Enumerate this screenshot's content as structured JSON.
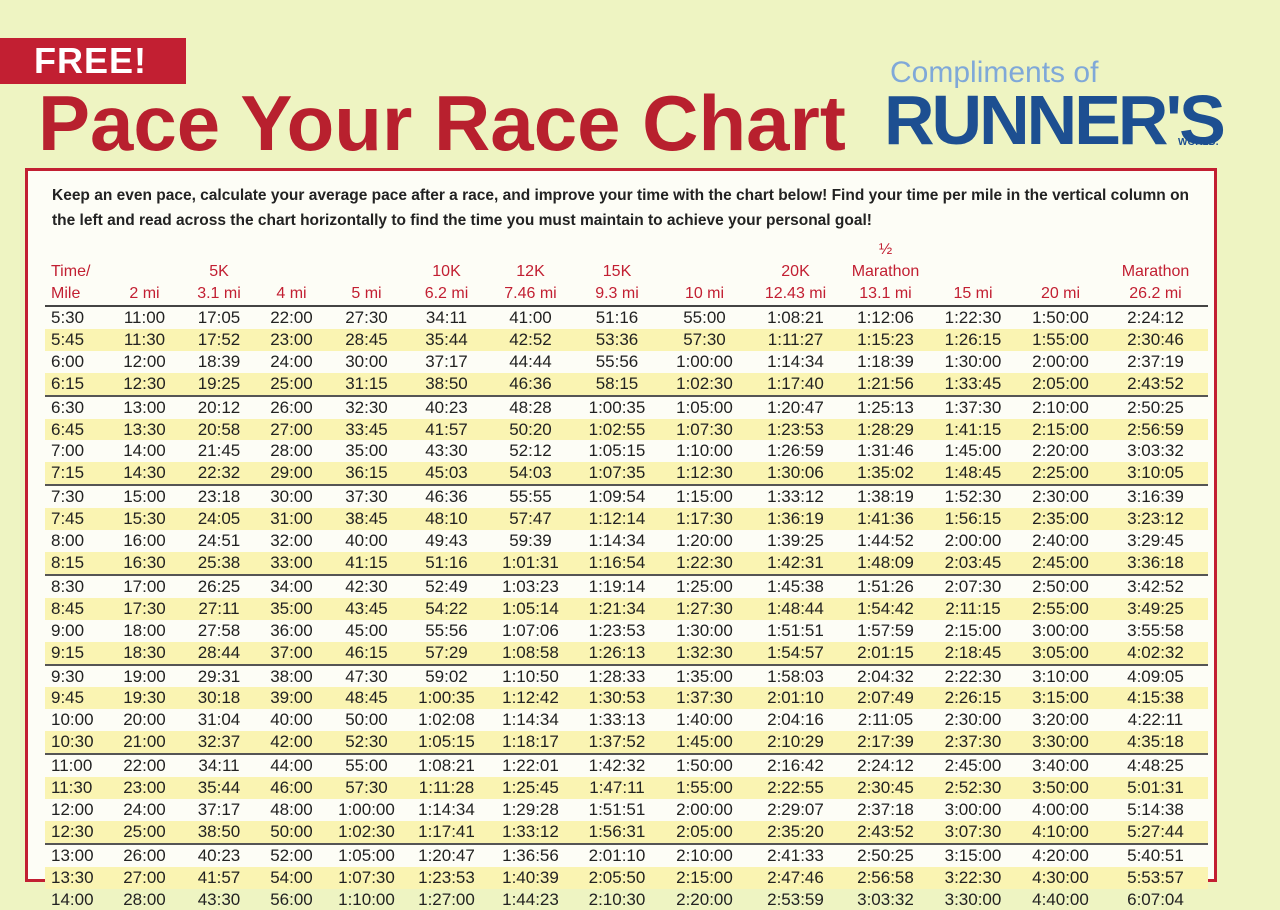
{
  "badge": "FREE!",
  "title": "Pace Your Race Chart",
  "sponsor": {
    "prefix": "Compliments of",
    "name": "RUNNER'S",
    "suffix": "WORLD."
  },
  "intro": "Keep an even pace, calculate your average pace after a race, and improve your time with the chart below! Find your time per mile in the vertical column on the left and read across the chart horizontally to find the time you must maintain to achieve your personal goal!",
  "table": {
    "headers": [
      {
        "top": "Time/",
        "bottom": "Mile"
      },
      {
        "bottom": "2 mi"
      },
      {
        "top": "5K",
        "bottom": "3.1 mi"
      },
      {
        "bottom": "4 mi"
      },
      {
        "bottom": "5 mi"
      },
      {
        "top": "10K",
        "bottom": "6.2 mi"
      },
      {
        "top": "12K",
        "bottom": "7.46 mi"
      },
      {
        "top": "15K",
        "bottom": "9.3 mi"
      },
      {
        "bottom": "10 mi"
      },
      {
        "top": "20K",
        "bottom": "12.43 mi"
      },
      {
        "top": "½ Marathon",
        "bottom": "13.1 mi"
      },
      {
        "bottom": "15 mi"
      },
      {
        "bottom": "20 mi"
      },
      {
        "top": "Marathon",
        "bottom": "26.2 mi"
      }
    ],
    "rows": [
      [
        "5:30",
        "11:00",
        "17:05",
        "22:00",
        "27:30",
        "34:11",
        "41:00",
        "51:16",
        "55:00",
        "1:08:21",
        "1:12:06",
        "1:22:30",
        "1:50:00",
        "2:24:12"
      ],
      [
        "5:45",
        "11:30",
        "17:52",
        "23:00",
        "28:45",
        "35:44",
        "42:52",
        "53:36",
        "57:30",
        "1:11:27",
        "1:15:23",
        "1:26:15",
        "1:55:00",
        "2:30:46"
      ],
      [
        "6:00",
        "12:00",
        "18:39",
        "24:00",
        "30:00",
        "37:17",
        "44:44",
        "55:56",
        "1:00:00",
        "1:14:34",
        "1:18:39",
        "1:30:00",
        "2:00:00",
        "2:37:19"
      ],
      [
        "6:15",
        "12:30",
        "19:25",
        "25:00",
        "31:15",
        "38:50",
        "46:36",
        "58:15",
        "1:02:30",
        "1:17:40",
        "1:21:56",
        "1:33:45",
        "2:05:00",
        "2:43:52"
      ],
      [
        "6:30",
        "13:00",
        "20:12",
        "26:00",
        "32:30",
        "40:23",
        "48:28",
        "1:00:35",
        "1:05:00",
        "1:20:47",
        "1:25:13",
        "1:37:30",
        "2:10:00",
        "2:50:25"
      ],
      [
        "6:45",
        "13:30",
        "20:58",
        "27:00",
        "33:45",
        "41:57",
        "50:20",
        "1:02:55",
        "1:07:30",
        "1:23:53",
        "1:28:29",
        "1:41:15",
        "2:15:00",
        "2:56:59"
      ],
      [
        "7:00",
        "14:00",
        "21:45",
        "28:00",
        "35:00",
        "43:30",
        "52:12",
        "1:05:15",
        "1:10:00",
        "1:26:59",
        "1:31:46",
        "1:45:00",
        "2:20:00",
        "3:03:32"
      ],
      [
        "7:15",
        "14:30",
        "22:32",
        "29:00",
        "36:15",
        "45:03",
        "54:03",
        "1:07:35",
        "1:12:30",
        "1:30:06",
        "1:35:02",
        "1:48:45",
        "2:25:00",
        "3:10:05"
      ],
      [
        "7:30",
        "15:00",
        "23:18",
        "30:00",
        "37:30",
        "46:36",
        "55:55",
        "1:09:54",
        "1:15:00",
        "1:33:12",
        "1:38:19",
        "1:52:30",
        "2:30:00",
        "3:16:39"
      ],
      [
        "7:45",
        "15:30",
        "24:05",
        "31:00",
        "38:45",
        "48:10",
        "57:47",
        "1:12:14",
        "1:17:30",
        "1:36:19",
        "1:41:36",
        "1:56:15",
        "2:35:00",
        "3:23:12"
      ],
      [
        "8:00",
        "16:00",
        "24:51",
        "32:00",
        "40:00",
        "49:43",
        "59:39",
        "1:14:34",
        "1:20:00",
        "1:39:25",
        "1:44:52",
        "2:00:00",
        "2:40:00",
        "3:29:45"
      ],
      [
        "8:15",
        "16:30",
        "25:38",
        "33:00",
        "41:15",
        "51:16",
        "1:01:31",
        "1:16:54",
        "1:22:30",
        "1:42:31",
        "1:48:09",
        "2:03:45",
        "2:45:00",
        "3:36:18"
      ],
      [
        "8:30",
        "17:00",
        "26:25",
        "34:00",
        "42:30",
        "52:49",
        "1:03:23",
        "1:19:14",
        "1:25:00",
        "1:45:38",
        "1:51:26",
        "2:07:30",
        "2:50:00",
        "3:42:52"
      ],
      [
        "8:45",
        "17:30",
        "27:11",
        "35:00",
        "43:45",
        "54:22",
        "1:05:14",
        "1:21:34",
        "1:27:30",
        "1:48:44",
        "1:54:42",
        "2:11:15",
        "2:55:00",
        "3:49:25"
      ],
      [
        "9:00",
        "18:00",
        "27:58",
        "36:00",
        "45:00",
        "55:56",
        "1:07:06",
        "1:23:53",
        "1:30:00",
        "1:51:51",
        "1:57:59",
        "2:15:00",
        "3:00:00",
        "3:55:58"
      ],
      [
        "9:15",
        "18:30",
        "28:44",
        "37:00",
        "46:15",
        "57:29",
        "1:08:58",
        "1:26:13",
        "1:32:30",
        "1:54:57",
        "2:01:15",
        "2:18:45",
        "3:05:00",
        "4:02:32"
      ],
      [
        "9:30",
        "19:00",
        "29:31",
        "38:00",
        "47:30",
        "59:02",
        "1:10:50",
        "1:28:33",
        "1:35:00",
        "1:58:03",
        "2:04:32",
        "2:22:30",
        "3:10:00",
        "4:09:05"
      ],
      [
        "9:45",
        "19:30",
        "30:18",
        "39:00",
        "48:45",
        "1:00:35",
        "1:12:42",
        "1:30:53",
        "1:37:30",
        "2:01:10",
        "2:07:49",
        "2:26:15",
        "3:15:00",
        "4:15:38"
      ],
      [
        "10:00",
        "20:00",
        "31:04",
        "40:00",
        "50:00",
        "1:02:08",
        "1:14:34",
        "1:33:13",
        "1:40:00",
        "2:04:16",
        "2:11:05",
        "2:30:00",
        "3:20:00",
        "4:22:11"
      ],
      [
        "10:30",
        "21:00",
        "32:37",
        "42:00",
        "52:30",
        "1:05:15",
        "1:18:17",
        "1:37:52",
        "1:45:00",
        "2:10:29",
        "2:17:39",
        "2:37:30",
        "3:30:00",
        "4:35:18"
      ],
      [
        "11:00",
        "22:00",
        "34:11",
        "44:00",
        "55:00",
        "1:08:21",
        "1:22:01",
        "1:42:32",
        "1:50:00",
        "2:16:42",
        "2:24:12",
        "2:45:00",
        "3:40:00",
        "4:48:25"
      ],
      [
        "11:30",
        "23:00",
        "35:44",
        "46:00",
        "57:30",
        "1:11:28",
        "1:25:45",
        "1:47:11",
        "1:55:00",
        "2:22:55",
        "2:30:45",
        "2:52:30",
        "3:50:00",
        "5:01:31"
      ],
      [
        "12:00",
        "24:00",
        "37:17",
        "48:00",
        "1:00:00",
        "1:14:34",
        "1:29:28",
        "1:51:51",
        "2:00:00",
        "2:29:07",
        "2:37:18",
        "3:00:00",
        "4:00:00",
        "5:14:38"
      ],
      [
        "12:30",
        "25:00",
        "38:50",
        "50:00",
        "1:02:30",
        "1:17:41",
        "1:33:12",
        "1:56:31",
        "2:05:00",
        "2:35:20",
        "2:43:52",
        "3:07:30",
        "4:10:00",
        "5:27:44"
      ],
      [
        "13:00",
        "26:00",
        "40:23",
        "52:00",
        "1:05:00",
        "1:20:47",
        "1:36:56",
        "2:01:10",
        "2:10:00",
        "2:41:33",
        "2:50:25",
        "3:15:00",
        "4:20:00",
        "5:40:51"
      ],
      [
        "13:30",
        "27:00",
        "41:57",
        "54:00",
        "1:07:30",
        "1:23:53",
        "1:40:39",
        "2:05:50",
        "2:15:00",
        "2:47:46",
        "2:56:58",
        "3:22:30",
        "4:30:00",
        "5:53:57"
      ],
      [
        "14:00",
        "28:00",
        "43:30",
        "56:00",
        "1:10:00",
        "1:27:00",
        "1:44:23",
        "2:10:30",
        "2:20:00",
        "2:53:59",
        "3:03:32",
        "3:30:00",
        "4:40:00",
        "6:07:04"
      ]
    ]
  }
}
